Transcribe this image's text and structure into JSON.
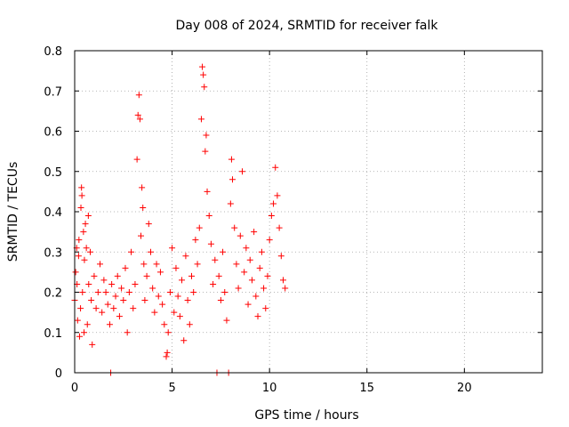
{
  "chart_data": {
    "type": "scatter",
    "title": "Day 008 of 2024, SRMTID for receiver falk",
    "xlabel": "GPS time / hours",
    "ylabel": "SRMTID / TECUs",
    "xlim": [
      0,
      24
    ],
    "ylim": [
      0,
      0.8
    ],
    "xticks": [
      0,
      5,
      10,
      15,
      20
    ],
    "xtick_labels": [
      "0",
      "5",
      "10",
      "15",
      "20"
    ],
    "yticks": [
      0,
      0.1,
      0.2,
      0.3,
      0.4,
      0.5,
      0.6,
      0.7,
      0.8
    ],
    "ytick_labels": [
      "0",
      "0.1",
      "0.2",
      "0.3",
      "0.4",
      "0.5",
      "0.6",
      "0.7",
      "0.8"
    ],
    "grid": true,
    "marker": "+",
    "color": "#ff0000",
    "data_x_range": [
      0,
      10.8
    ],
    "series": [
      {
        "name": "SRMTID",
        "points": [
          [
            0.0,
            0.18
          ],
          [
            0.05,
            0.25
          ],
          [
            0.1,
            0.31
          ],
          [
            0.12,
            0.22
          ],
          [
            0.15,
            0.13
          ],
          [
            0.2,
            0.29
          ],
          [
            0.22,
            0.33
          ],
          [
            0.25,
            0.09
          ],
          [
            0.3,
            0.16
          ],
          [
            0.32,
            0.41
          ],
          [
            0.35,
            0.46
          ],
          [
            0.37,
            0.44
          ],
          [
            0.4,
            0.2
          ],
          [
            0.45,
            0.35
          ],
          [
            0.48,
            0.1
          ],
          [
            0.5,
            0.28
          ],
          [
            0.55,
            0.37
          ],
          [
            0.6,
            0.31
          ],
          [
            0.65,
            0.12
          ],
          [
            0.7,
            0.39
          ],
          [
            0.72,
            0.22
          ],
          [
            0.8,
            0.3
          ],
          [
            0.85,
            0.18
          ],
          [
            0.9,
            0.07
          ],
          [
            1.0,
            0.24
          ],
          [
            1.1,
            0.16
          ],
          [
            1.2,
            0.2
          ],
          [
            1.3,
            0.27
          ],
          [
            1.4,
            0.15
          ],
          [
            1.5,
            0.23
          ],
          [
            1.6,
            0.2
          ],
          [
            1.7,
            0.17
          ],
          [
            1.8,
            0.12
          ],
          [
            1.85,
            0.0
          ],
          [
            1.9,
            0.22
          ],
          [
            2.0,
            0.16
          ],
          [
            2.1,
            0.19
          ],
          [
            2.2,
            0.24
          ],
          [
            2.3,
            0.14
          ],
          [
            2.4,
            0.21
          ],
          [
            2.5,
            0.18
          ],
          [
            2.6,
            0.26
          ],
          [
            2.7,
            0.1
          ],
          [
            2.8,
            0.2
          ],
          [
            2.9,
            0.3
          ],
          [
            3.0,
            0.16
          ],
          [
            3.1,
            0.22
          ],
          [
            3.2,
            0.53
          ],
          [
            3.25,
            0.64
          ],
          [
            3.3,
            0.69
          ],
          [
            3.35,
            0.63
          ],
          [
            3.4,
            0.34
          ],
          [
            3.45,
            0.46
          ],
          [
            3.5,
            0.41
          ],
          [
            3.55,
            0.27
          ],
          [
            3.6,
            0.18
          ],
          [
            3.7,
            0.24
          ],
          [
            3.8,
            0.37
          ],
          [
            3.9,
            0.3
          ],
          [
            4.0,
            0.21
          ],
          [
            4.1,
            0.15
          ],
          [
            4.2,
            0.27
          ],
          [
            4.3,
            0.19
          ],
          [
            4.4,
            0.25
          ],
          [
            4.5,
            0.17
          ],
          [
            4.6,
            0.12
          ],
          [
            4.7,
            0.04
          ],
          [
            4.75,
            0.05
          ],
          [
            4.8,
            0.1
          ],
          [
            4.9,
            0.2
          ],
          [
            5.0,
            0.31
          ],
          [
            5.1,
            0.15
          ],
          [
            5.2,
            0.26
          ],
          [
            5.3,
            0.19
          ],
          [
            5.4,
            0.14
          ],
          [
            5.5,
            0.23
          ],
          [
            5.6,
            0.08
          ],
          [
            5.7,
            0.29
          ],
          [
            5.8,
            0.18
          ],
          [
            5.9,
            0.12
          ],
          [
            6.0,
            0.24
          ],
          [
            6.1,
            0.2
          ],
          [
            6.2,
            0.33
          ],
          [
            6.3,
            0.27
          ],
          [
            6.4,
            0.36
          ],
          [
            6.5,
            0.63
          ],
          [
            6.55,
            0.76
          ],
          [
            6.6,
            0.74
          ],
          [
            6.65,
            0.71
          ],
          [
            6.7,
            0.55
          ],
          [
            6.75,
            0.59
          ],
          [
            6.8,
            0.45
          ],
          [
            6.9,
            0.39
          ],
          [
            7.0,
            0.32
          ],
          [
            7.1,
            0.22
          ],
          [
            7.2,
            0.28
          ],
          [
            7.3,
            0.0
          ],
          [
            7.4,
            0.24
          ],
          [
            7.5,
            0.18
          ],
          [
            7.6,
            0.3
          ],
          [
            7.7,
            0.2
          ],
          [
            7.8,
            0.13
          ],
          [
            7.9,
            0.0
          ],
          [
            8.0,
            0.42
          ],
          [
            8.05,
            0.53
          ],
          [
            8.1,
            0.48
          ],
          [
            8.2,
            0.36
          ],
          [
            8.3,
            0.27
          ],
          [
            8.4,
            0.21
          ],
          [
            8.5,
            0.34
          ],
          [
            8.6,
            0.5
          ],
          [
            8.7,
            0.25
          ],
          [
            8.8,
            0.31
          ],
          [
            8.9,
            0.17
          ],
          [
            9.0,
            0.28
          ],
          [
            9.1,
            0.23
          ],
          [
            9.2,
            0.35
          ],
          [
            9.3,
            0.19
          ],
          [
            9.4,
            0.14
          ],
          [
            9.5,
            0.26
          ],
          [
            9.6,
            0.3
          ],
          [
            9.7,
            0.21
          ],
          [
            9.8,
            0.16
          ],
          [
            9.9,
            0.24
          ],
          [
            10.0,
            0.33
          ],
          [
            10.1,
            0.39
          ],
          [
            10.2,
            0.42
          ],
          [
            10.3,
            0.51
          ],
          [
            10.4,
            0.44
          ],
          [
            10.5,
            0.36
          ],
          [
            10.6,
            0.29
          ],
          [
            10.7,
            0.23
          ],
          [
            10.8,
            0.21
          ]
        ]
      }
    ]
  }
}
